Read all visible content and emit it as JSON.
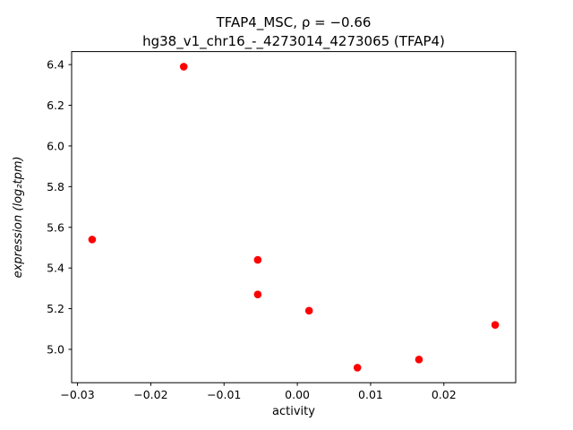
{
  "chart_data": {
    "type": "scatter",
    "title": "TFAP4_MSC, ρ = −0.66",
    "subtitle": "hg38_v1_chr16_-_4273014_4273065 (TFAP4)",
    "xlabel": "activity",
    "ylabel": "expression (log₂tpm)",
    "marker_color": "#ff0000",
    "axis_color": "#000000",
    "xlim": [
      -0.0308,
      0.0298
    ],
    "ylim": [
      4.836,
      6.464
    ],
    "xticks": [
      -0.03,
      -0.02,
      -0.01,
      0.0,
      0.01,
      0.02
    ],
    "yticks": [
      5.0,
      5.2,
      5.4,
      5.6,
      5.8,
      6.0,
      6.2,
      6.4
    ],
    "points": [
      {
        "x": -0.028,
        "y": 5.54
      },
      {
        "x": -0.0155,
        "y": 6.39
      },
      {
        "x": -0.0054,
        "y": 5.44
      },
      {
        "x": -0.0054,
        "y": 5.27
      },
      {
        "x": 0.0016,
        "y": 5.19
      },
      {
        "x": 0.0082,
        "y": 4.91
      },
      {
        "x": 0.0166,
        "y": 4.95
      },
      {
        "x": 0.027,
        "y": 5.12
      }
    ],
    "legend": "none",
    "grid": false
  }
}
